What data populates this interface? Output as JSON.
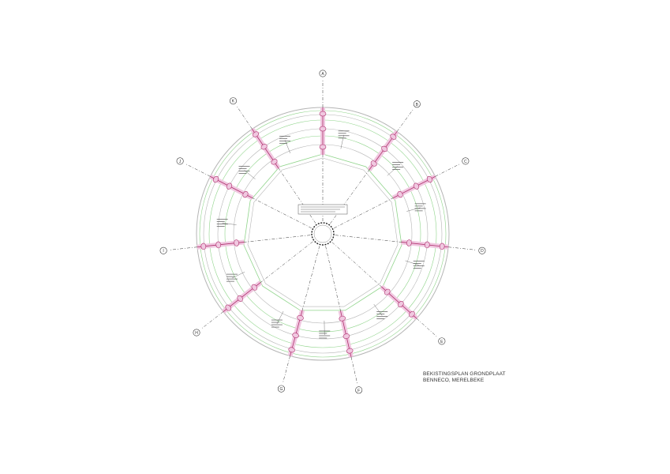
{
  "title_block": {
    "line1": "BEKISTINGSPLAN GRONDPLAAT",
    "line2": "BENNECO, MERELBEKE"
  },
  "axes": [
    {
      "label": "A",
      "angle": 0
    },
    {
      "label": "B",
      "angle": 36
    },
    {
      "label": "C",
      "angle": 63
    },
    {
      "label": "D",
      "angle": 96
    },
    {
      "label": "E",
      "angle": 132
    },
    {
      "label": "F",
      "angle": 167
    },
    {
      "label": "G",
      "angle": 195
    },
    {
      "label": "H",
      "angle": 232
    },
    {
      "label": "I",
      "angle": 264
    },
    {
      "label": "J",
      "angle": 297
    },
    {
      "label": "K",
      "angle": 326
    }
  ],
  "colors": {
    "ring": "#8fd48a",
    "ring_inner": "#b5b5b5",
    "beam": "#b0306e",
    "beam_fill": "#f0c8e0",
    "axis": "#333333",
    "text": "#444444",
    "column": "#222222"
  }
}
